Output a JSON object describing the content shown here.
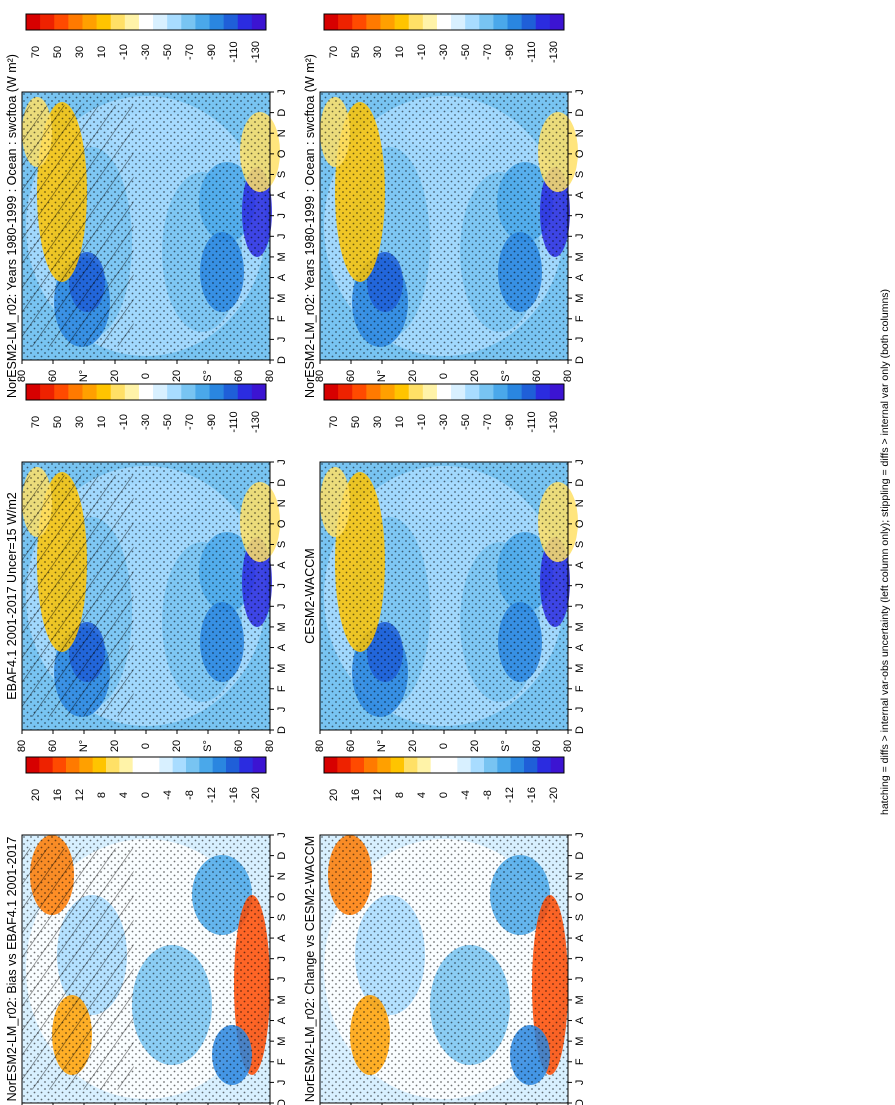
{
  "footnote": "hatching = diffs > internal var-obs uncertainty (left column only); stippling = diffs > internal var only (both columns)",
  "colors": {
    "abs_scale": [
      "#d70000",
      "#ee2200",
      "#ff4a00",
      "#ff7a00",
      "#ffa000",
      "#ffc400",
      "#ffe066",
      "#fff3a8",
      "#ffffff",
      "#d8f0ff",
      "#a8dcff",
      "#78c4f2",
      "#4aa8ea",
      "#2a86e0",
      "#1f5fd8",
      "#2b2ce0",
      "#3c14d2"
    ],
    "diff_scale": [
      "#d70000",
      "#ee2200",
      "#ff4a00",
      "#ff7a00",
      "#ffa000",
      "#ffc400",
      "#ffe066",
      "#fff3a8",
      "#ffffff",
      "#ffffff",
      "#d8f0ff",
      "#a8dcff",
      "#78c4f2",
      "#4aa8ea",
      "#2a86e0",
      "#1f5fd8",
      "#2b2ce0",
      "#3c14d2"
    ]
  },
  "chart_data": [
    {
      "type": "heatmap",
      "panel": "top-left",
      "title": "NorESM2-LM_r02: Years 1980-1999 : Ocean : swcftoa (W m²)",
      "x_ticks": [
        "D",
        "J",
        "F",
        "M",
        "A",
        "M",
        "J",
        "J",
        "A",
        "S",
        "O",
        "N",
        "D",
        "J"
      ],
      "y_ticks": [
        "80",
        "60",
        "N°",
        "20",
        "0",
        "20",
        "S°",
        "60",
        "80"
      ],
      "colorbar_ticks": [
        "70",
        "50",
        "30",
        "10",
        "-10",
        "-30",
        "-50",
        "-70",
        "-90",
        "-110",
        "-130"
      ],
      "hatched": true,
      "stippled": true
    },
    {
      "type": "heatmap",
      "panel": "top-right",
      "title": "NorESM2-LM_r02: Years 1980-1999 : Ocean : swcftoa (W m²)",
      "x_ticks": [
        "D",
        "J",
        "F",
        "M",
        "A",
        "M",
        "J",
        "J",
        "A",
        "S",
        "O",
        "N",
        "D",
        "J"
      ],
      "y_ticks": [
        "80",
        "60",
        "N°",
        "20",
        "0",
        "20",
        "S°",
        "60",
        "80"
      ],
      "colorbar_ticks": [
        "70",
        "50",
        "30",
        "10",
        "-10",
        "-30",
        "-50",
        "-70",
        "-90",
        "-110",
        "-130"
      ],
      "hatched": false,
      "stippled": true
    },
    {
      "type": "heatmap",
      "panel": "middle-left",
      "title": "EBAF4.1 2001-2017 Uncer=15 W/m2",
      "x_ticks": [
        "D",
        "J",
        "F",
        "M",
        "A",
        "M",
        "J",
        "J",
        "A",
        "S",
        "O",
        "N",
        "D",
        "J"
      ],
      "y_ticks": [
        "80",
        "60",
        "N°",
        "20",
        "0",
        "20",
        "S°",
        "60",
        "80"
      ],
      "colorbar_ticks": [
        "70",
        "50",
        "30",
        "10",
        "-10",
        "-30",
        "-50",
        "-70",
        "-90",
        "-110",
        "-130"
      ],
      "hatched": true,
      "stippled": true
    },
    {
      "type": "heatmap",
      "panel": "middle-right",
      "title": "CESM2-WACCM",
      "x_ticks": [
        "D",
        "J",
        "F",
        "M",
        "A",
        "M",
        "J",
        "J",
        "A",
        "S",
        "O",
        "N",
        "D",
        "J"
      ],
      "y_ticks": [
        "80",
        "60",
        "N°",
        "20",
        "0",
        "20",
        "S°",
        "60",
        "80"
      ],
      "colorbar_ticks": [
        "70",
        "50",
        "30",
        "10",
        "-10",
        "-30",
        "-50",
        "-70",
        "-90",
        "-110",
        "-130"
      ],
      "hatched": false,
      "stippled": true
    },
    {
      "type": "heatmap",
      "panel": "bottom-left",
      "title": "NorESM2-LM_r02: Bias vs EBAF4.1 2001-2017",
      "x_ticks": [
        "D",
        "J",
        "F",
        "M",
        "A",
        "M",
        "J",
        "J",
        "A",
        "S",
        "O",
        "N",
        "D",
        "J"
      ],
      "y_ticks": [
        "80",
        "60",
        "N°",
        "20",
        "0",
        "20",
        "S°",
        "60",
        "80"
      ],
      "colorbar_ticks": [
        "20",
        "16",
        "12",
        "8",
        "4",
        "0",
        "-4",
        "-8",
        "-12",
        "-16",
        "-20"
      ],
      "hatched": true,
      "stippled": true
    },
    {
      "type": "heatmap",
      "panel": "bottom-right",
      "title": "NorESM2-LM_r02: Change vs CESM2-WACCM",
      "x_ticks": [
        "D",
        "J",
        "F",
        "M",
        "A",
        "M",
        "J",
        "J",
        "A",
        "S",
        "O",
        "N",
        "D",
        "J"
      ],
      "y_ticks": [
        "80",
        "60",
        "N°",
        "20",
        "0",
        "20",
        "S°",
        "60",
        "80"
      ],
      "colorbar_ticks": [
        "20",
        "16",
        "12",
        "8",
        "4",
        "0",
        "-4",
        "-8",
        "-12",
        "-16",
        "-20"
      ],
      "hatched": false,
      "stippled": true
    }
  ]
}
